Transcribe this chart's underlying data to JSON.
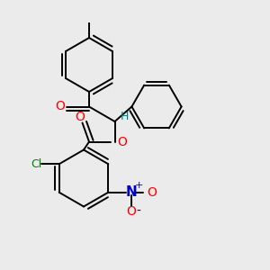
{
  "background_color": "#ebebeb",
  "bond_color": "#000000",
  "bond_width": 1.4,
  "dbo": 0.015,
  "figsize": [
    3.0,
    3.0
  ],
  "dpi": 100,
  "xlim": [
    0,
    1
  ],
  "ylim": [
    0,
    1
  ]
}
